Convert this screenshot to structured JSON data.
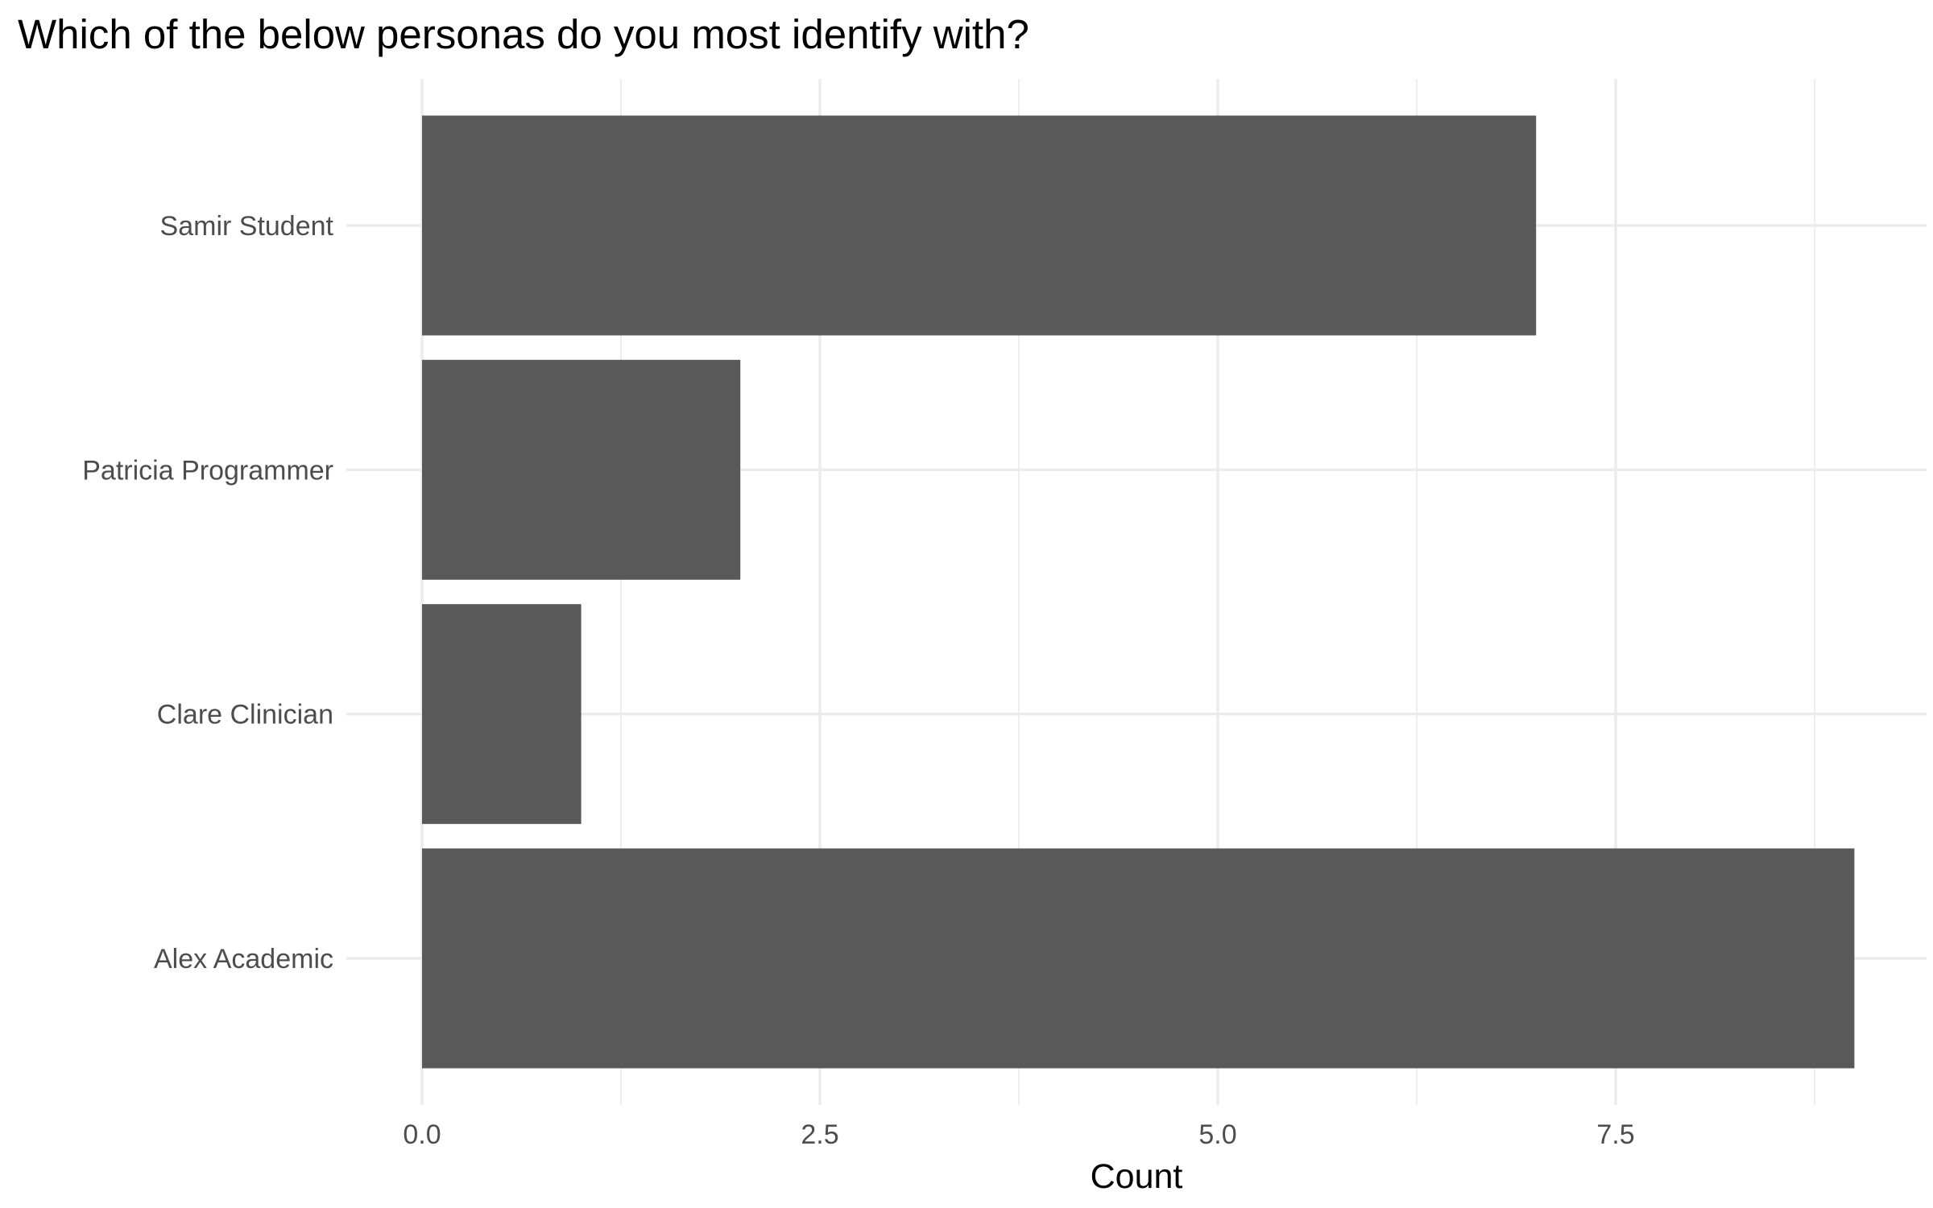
{
  "chart_data": {
    "type": "bar",
    "orientation": "horizontal",
    "title": "Which of the below personas do you most identify with?",
    "xlabel": "Count",
    "ylabel": "",
    "categories": [
      "Alex Academic",
      "Clare Clinician",
      "Patricia Programmer",
      "Samir Student"
    ],
    "values": [
      9,
      1,
      2,
      7
    ],
    "xlim": [
      0,
      9.45
    ],
    "xticks": [
      0,
      2.5,
      5,
      7.5
    ],
    "xtick_labels": [
      "0.0",
      "2.5",
      "5.0",
      "7.5"
    ],
    "grid": true,
    "legend": "none",
    "bar_color": "#595959"
  }
}
